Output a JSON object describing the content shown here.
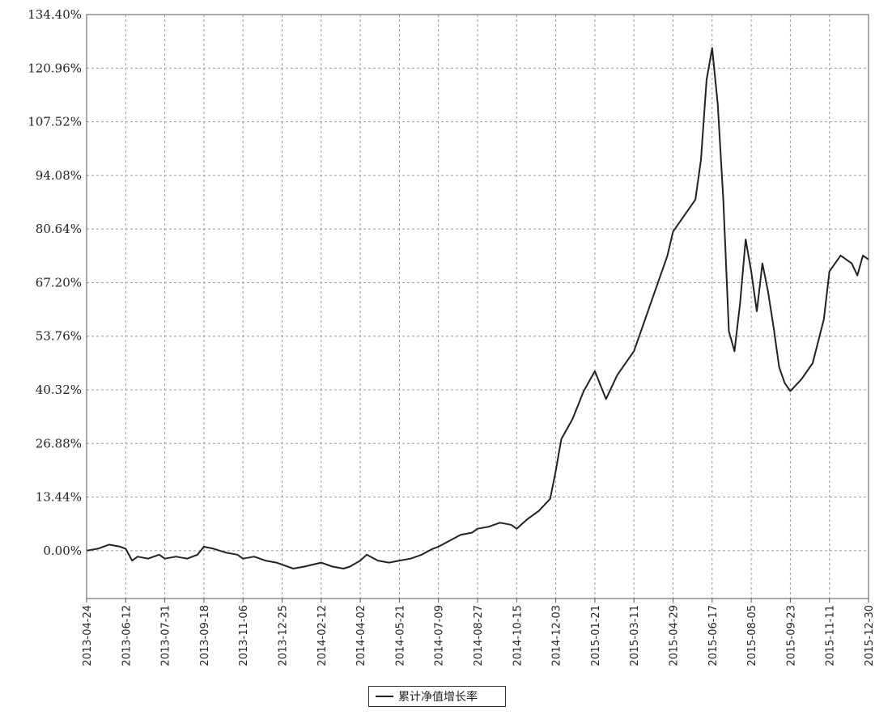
{
  "chart_data": {
    "type": "line",
    "ylim": [
      -12,
      134.4
    ],
    "yticks": [
      "134.40%",
      "120.96%",
      "107.52%",
      "94.08%",
      "80.64%",
      "67.20%",
      "53.76%",
      "40.32%",
      "26.88%",
      "13.44%",
      "0.00%"
    ],
    "ytick_values": [
      134.4,
      120.96,
      107.52,
      94.08,
      80.64,
      67.2,
      53.76,
      40.32,
      26.88,
      13.44,
      0.0
    ],
    "xlim": [
      "2013-04-24",
      "2015-12-30"
    ],
    "xticks": [
      "2013-04-24",
      "2013-06-12",
      "2013-07-31",
      "2013-09-18",
      "2013-11-06",
      "2013-12-25",
      "2014-02-12",
      "2014-04-02",
      "2014-05-21",
      "2014-07-09",
      "2014-08-27",
      "2014-10-15",
      "2014-12-03",
      "2015-01-21",
      "2015-03-11",
      "2015-04-29",
      "2015-06-17",
      "2015-08-05",
      "2015-09-23",
      "2015-11-11",
      "2015-12-30"
    ],
    "grid": true,
    "legend_position": "bottom-center",
    "series": [
      {
        "name": "累计净值增长率",
        "color": "#222222",
        "x": [
          "2013-04-24",
          "2013-05-08",
          "2013-05-22",
          "2013-06-05",
          "2013-06-12",
          "2013-06-20",
          "2013-06-27",
          "2013-07-10",
          "2013-07-24",
          "2013-07-31",
          "2013-08-14",
          "2013-08-28",
          "2013-09-10",
          "2013-09-18",
          "2013-09-30",
          "2013-10-16",
          "2013-10-30",
          "2013-11-06",
          "2013-11-20",
          "2013-12-04",
          "2013-12-18",
          "2013-12-25",
          "2014-01-08",
          "2014-01-22",
          "2014-02-12",
          "2014-02-26",
          "2014-03-12",
          "2014-03-20",
          "2014-04-02",
          "2014-04-10",
          "2014-04-24",
          "2014-05-08",
          "2014-05-21",
          "2014-06-04",
          "2014-06-18",
          "2014-07-02",
          "2014-07-09",
          "2014-07-23",
          "2014-08-06",
          "2014-08-20",
          "2014-08-27",
          "2014-09-10",
          "2014-09-24",
          "2014-10-08",
          "2014-10-15",
          "2014-10-29",
          "2014-11-12",
          "2014-11-26",
          "2014-12-03",
          "2014-12-10",
          "2014-12-24",
          "2015-01-07",
          "2015-01-21",
          "2015-02-04",
          "2015-02-18",
          "2015-03-04",
          "2015-03-11",
          "2015-03-25",
          "2015-04-08",
          "2015-04-22",
          "2015-04-29",
          "2015-05-13",
          "2015-05-27",
          "2015-06-03",
          "2015-06-10",
          "2015-06-17",
          "2015-06-24",
          "2015-07-01",
          "2015-07-08",
          "2015-07-15",
          "2015-07-22",
          "2015-07-29",
          "2015-08-05",
          "2015-08-12",
          "2015-08-19",
          "2015-08-26",
          "2015-09-02",
          "2015-09-09",
          "2015-09-16",
          "2015-09-23",
          "2015-10-07",
          "2015-10-21",
          "2015-11-04",
          "2015-11-11",
          "2015-11-25",
          "2015-12-09",
          "2015-12-16",
          "2015-12-23",
          "2015-12-30"
        ],
        "y": [
          0.0,
          0.5,
          1.5,
          1.0,
          0.5,
          -2.5,
          -1.5,
          -2.0,
          -1.0,
          -2.0,
          -1.5,
          -2.0,
          -1.0,
          1.0,
          0.5,
          -0.5,
          -1.0,
          -2.0,
          -1.5,
          -2.5,
          -3.0,
          -3.5,
          -4.5,
          -4.0,
          -3.0,
          -4.0,
          -4.5,
          -4.0,
          -2.5,
          -1.0,
          -2.5,
          -3.0,
          -2.5,
          -2.0,
          -1.0,
          0.5,
          1.0,
          2.5,
          4.0,
          4.5,
          5.5,
          6.0,
          7.0,
          6.5,
          5.5,
          8.0,
          10.0,
          13.0,
          20.0,
          28.0,
          33.0,
          40.0,
          45.0,
          38.0,
          44.0,
          48.0,
          50.0,
          58.0,
          66.0,
          74.0,
          80.0,
          84.0,
          88.0,
          98.0,
          118.0,
          126.0,
          112.0,
          88.0,
          55.0,
          50.0,
          62.0,
          78.0,
          70.0,
          60.0,
          72.0,
          65.0,
          56.0,
          46.0,
          42.0,
          40.0,
          43.0,
          47.0,
          58.0,
          70.0,
          74.0,
          72.0,
          69.0,
          74.0,
          73.0
        ]
      }
    ]
  }
}
